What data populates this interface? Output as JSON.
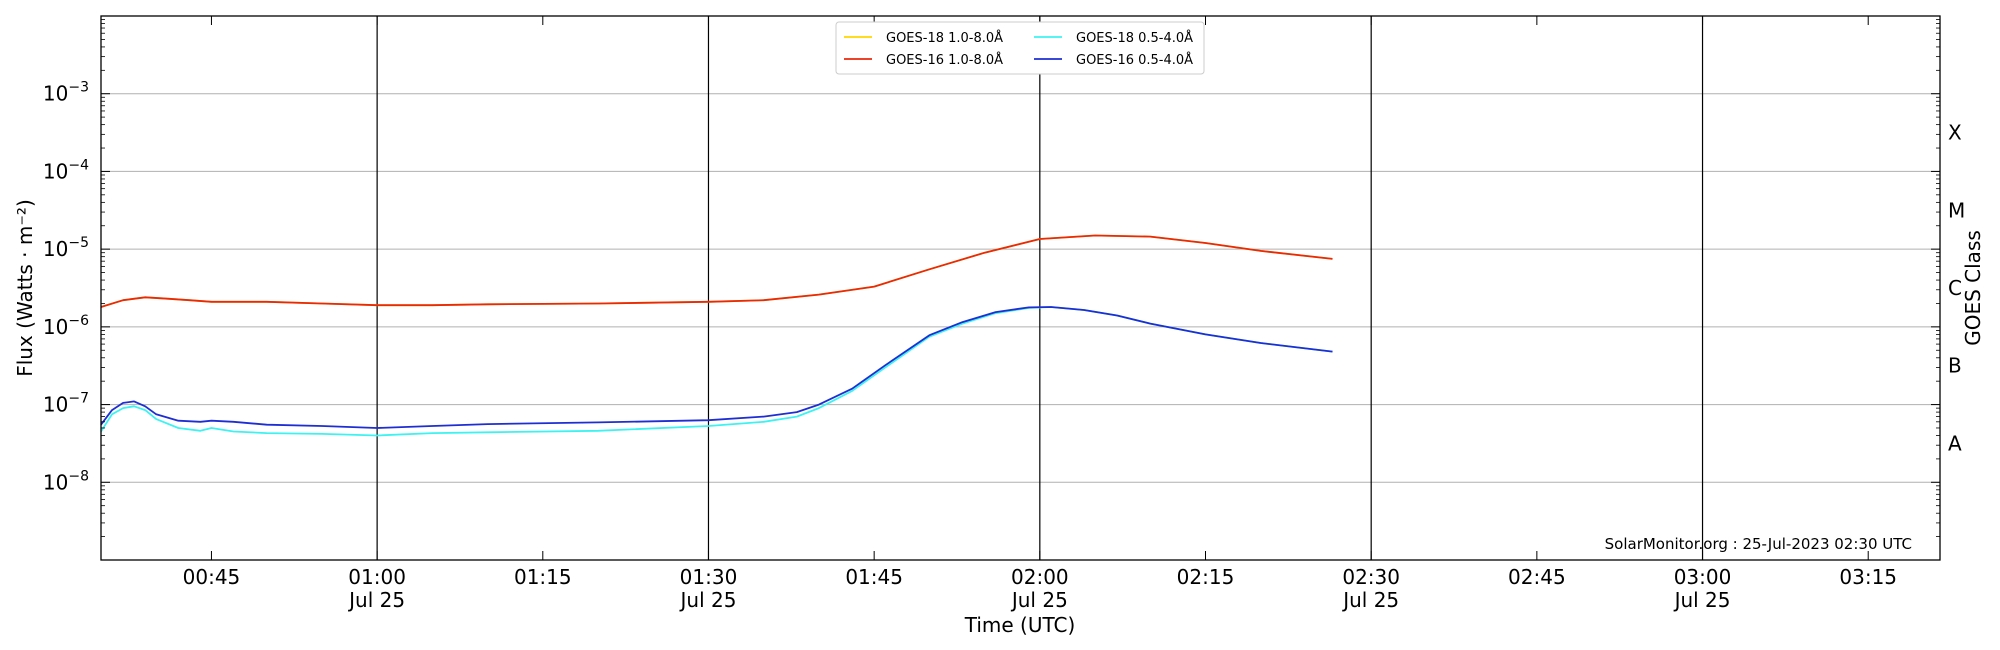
{
  "chart_data": {
    "type": "line",
    "xlabel": "Time (UTC)",
    "ylabel": "Flux (Watts · m⁻²)",
    "y2label": "GOES Class",
    "yscale": "log",
    "ylim": [
      1e-09,
      0.01
    ],
    "xlim_minutes": [
      35.0,
      201.5
    ],
    "time_origin_label": "00:00",
    "grid": "horizontal at decades",
    "vertical_lines": [
      "01:00",
      "01:30",
      "02:00",
      "02:30",
      "03:00"
    ],
    "x_ticks": [
      {
        "t": "00:45",
        "date": ""
      },
      {
        "t": "01:00",
        "date": "Jul 25"
      },
      {
        "t": "01:15",
        "date": ""
      },
      {
        "t": "01:30",
        "date": "Jul 25"
      },
      {
        "t": "01:45",
        "date": ""
      },
      {
        "t": "02:00",
        "date": "Jul 25"
      },
      {
        "t": "02:15",
        "date": ""
      },
      {
        "t": "02:30",
        "date": "Jul 25"
      },
      {
        "t": "02:45",
        "date": ""
      },
      {
        "t": "03:00",
        "date": "Jul 25"
      },
      {
        "t": "03:15",
        "date": ""
      }
    ],
    "y_ticks": [
      {
        "exp": -8,
        "label": "10",
        "sup": "−8"
      },
      {
        "exp": -7,
        "label": "10",
        "sup": "−7"
      },
      {
        "exp": -6,
        "label": "10",
        "sup": "−6"
      },
      {
        "exp": -5,
        "label": "10",
        "sup": "−5"
      },
      {
        "exp": -4,
        "label": "10",
        "sup": "−4"
      },
      {
        "exp": -3,
        "label": "10",
        "sup": "−3"
      }
    ],
    "goes_classes": [
      {
        "label": "A",
        "exp": -7.5
      },
      {
        "label": "B",
        "exp": -6.5
      },
      {
        "label": "C",
        "exp": -5.5
      },
      {
        "label": "M",
        "exp": -4.5
      },
      {
        "label": "X",
        "exp": -3.5
      }
    ],
    "legend_position": "top-center",
    "series": [
      {
        "name": "GOES-18 1.0-8.0Å",
        "color": "#ffd700",
        "x": [
          35,
          37,
          39,
          41,
          43,
          45,
          50,
          55,
          60,
          65,
          70,
          80,
          90,
          95,
          100,
          105,
          110,
          115,
          120,
          125,
          130,
          135,
          140,
          146.5
        ],
        "y": [
          1.8e-06,
          2.2e-06,
          2.4e-06,
          2.3e-06,
          2.2e-06,
          2.1e-06,
          2.1e-06,
          2e-06,
          1.9e-06,
          1.9e-06,
          1.95e-06,
          2e-06,
          2.1e-06,
          2.2e-06,
          2.6e-06,
          3.3e-06,
          5.5e-06,
          9e-06,
          1.35e-05,
          1.5e-05,
          1.45e-05,
          1.2e-05,
          9.5e-06,
          7.5e-06
        ]
      },
      {
        "name": "GOES-16 1.0-8.0Å",
        "color": "#e8290b",
        "x": [
          35,
          37,
          39,
          41,
          43,
          45,
          50,
          55,
          60,
          65,
          70,
          80,
          90,
          95,
          100,
          105,
          110,
          115,
          120,
          125,
          130,
          135,
          140,
          146.5
        ],
        "y": [
          1.8e-06,
          2.2e-06,
          2.4e-06,
          2.3e-06,
          2.2e-06,
          2.1e-06,
          2.1e-06,
          2e-06,
          1.9e-06,
          1.9e-06,
          1.95e-06,
          2e-06,
          2.1e-06,
          2.2e-06,
          2.6e-06,
          3.3e-06,
          5.5e-06,
          9e-06,
          1.35e-05,
          1.5e-05,
          1.45e-05,
          1.2e-05,
          9.5e-06,
          7.5e-06
        ]
      },
      {
        "name": "GOES-18 0.5-4.0Å",
        "color": "#3ef2f2",
        "x": [
          35,
          36,
          37,
          38,
          39,
          40,
          42,
          44,
          45,
          47,
          50,
          55,
          60,
          65,
          70,
          80,
          90,
          95,
          98,
          100,
          103,
          106,
          110,
          113,
          116,
          119,
          121,
          124,
          127,
          130,
          135,
          140,
          146.5
        ],
        "y": [
          4.5e-08,
          7.5e-08,
          9e-08,
          9.5e-08,
          8.5e-08,
          6.5e-08,
          5e-08,
          4.6e-08,
          5e-08,
          4.5e-08,
          4.3e-08,
          4.2e-08,
          4e-08,
          4.3e-08,
          4.4e-08,
          4.6e-08,
          5.3e-08,
          6e-08,
          7e-08,
          9e-08,
          1.5e-07,
          3e-07,
          7.5e-07,
          1.1e-06,
          1.5e-06,
          1.75e-06,
          1.8e-06,
          1.65e-06,
          1.4e-06,
          1.1e-06,
          8e-07,
          6.2e-07,
          4.8e-07
        ]
      },
      {
        "name": "GOES-16 0.5-4.0Å",
        "color": "#1e2ed2",
        "x": [
          35,
          36,
          37,
          38,
          39,
          40,
          42,
          44,
          45,
          47,
          50,
          55,
          60,
          65,
          70,
          80,
          90,
          95,
          98,
          100,
          103,
          106,
          110,
          113,
          116,
          119,
          121,
          124,
          127,
          130,
          135,
          140,
          146.5
        ],
        "y": [
          5.5e-08,
          8.5e-08,
          1.05e-07,
          1.1e-07,
          9.5e-08,
          7.5e-08,
          6.2e-08,
          6e-08,
          6.2e-08,
          6e-08,
          5.5e-08,
          5.3e-08,
          5e-08,
          5.3e-08,
          5.6e-08,
          5.9e-08,
          6.3e-08,
          7e-08,
          8e-08,
          1e-07,
          1.6e-07,
          3.2e-07,
          7.8e-07,
          1.15e-06,
          1.55e-06,
          1.78e-06,
          1.8e-06,
          1.65e-06,
          1.4e-06,
          1.1e-06,
          8e-07,
          6.2e-07,
          4.8e-07
        ]
      }
    ],
    "annotation": "SolarMonitor.org : 25-Jul-2023 02:30 UTC"
  }
}
